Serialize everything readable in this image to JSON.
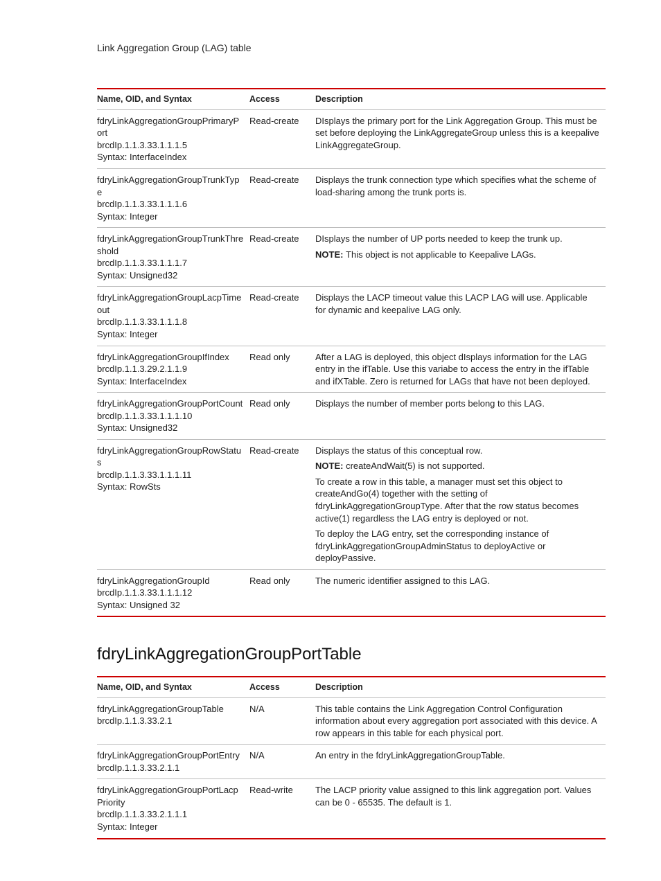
{
  "page_header": "Link Aggregation Group (LAG) table",
  "table1": {
    "headers": {
      "c1": "Name, OID, and Syntax",
      "c2": "Access",
      "c3": "Description"
    },
    "rows": [
      {
        "name": "fdryLinkAggregationGroupPrimaryPort",
        "oid": "brcdIp.1.1.3.33.1.1.1.5",
        "syntax": "Syntax: InterfaceIndex",
        "access": "Read-create",
        "desc_parts": [
          {
            "type": "text",
            "text": "DIsplays the primary port for the Link Aggregation Group. This must be set before deploying the LinkAggregateGroup unless this is a keepalive LinkAggregateGroup."
          }
        ]
      },
      {
        "name": "fdryLinkAggregationGroupTrunkType",
        "oid": "brcdIp.1.1.3.33.1.1.1.6",
        "syntax": "Syntax: Integer",
        "access": "Read-create",
        "desc_parts": [
          {
            "type": "text",
            "text": "Displays the trunk connection type which specifies what the scheme of load-sharing among the trunk ports is."
          }
        ]
      },
      {
        "name": "fdryLinkAggregationGroupTrunkThreshold",
        "oid": "brcdIp.1.1.3.33.1.1.1.7",
        "syntax": "Syntax: Unsigned32",
        "access": "Read-create",
        "desc_parts": [
          {
            "type": "text",
            "text": "DIsplays the number of UP ports needed to keep the trunk up."
          },
          {
            "type": "note",
            "label": "NOTE:",
            "text": "This object is not applicable to Keepalive LAGs."
          }
        ]
      },
      {
        "name": "fdryLinkAggregationGroupLacpTimeout",
        "oid": "brcdIp.1.1.3.33.1.1.1.8",
        "syntax": "Syntax: Integer",
        "access": "Read-create",
        "desc_parts": [
          {
            "type": "text",
            "text": "Displays the LACP timeout value this LACP LAG will use. Applicable for dynamic and keepalive LAG only."
          }
        ]
      },
      {
        "name": "fdryLinkAggregationGroupIfIndex",
        "oid": "brcdIp.1.1.3.29.2.1.1.9",
        "syntax": "Syntax: InterfaceIndex",
        "access": "Read only",
        "desc_parts": [
          {
            "type": "text",
            "text": "After a LAG is deployed, this object dIsplays information for the LAG entry in the ifTable. Use this variabe to access the entry in the ifTable and ifXTable. Zero is returned for LAGs that have not been deployed."
          }
        ]
      },
      {
        "name": "fdryLinkAggregationGroupPortCount",
        "oid": "brcdIp.1.1.3.33.1.1.1.10",
        "syntax": "Syntax: Unsigned32",
        "access": "Read only",
        "desc_parts": [
          {
            "type": "text",
            "text": "Displays the number of member ports belong to this LAG."
          }
        ]
      },
      {
        "name": "fdryLinkAggregationGroupRowStatus",
        "oid": "brcdIp.1.1.3.33.1.1.1.11",
        "syntax": "Syntax: RowSts",
        "access": "Read-create",
        "desc_parts": [
          {
            "type": "text",
            "text": "Displays the status of this conceptual row."
          },
          {
            "type": "note",
            "label": "NOTE:",
            "text": "createAndWait(5) is not supported."
          },
          {
            "type": "text",
            "text": "To create a row in this table, a manager must set this object to createAndGo(4) together with the setting of fdryLinkAggregationGroupType. After that the row status becomes active(1) regardless the LAG entry is deployed or not."
          },
          {
            "type": "text",
            "text": "To deploy the LAG entry, set the corresponding instance of fdryLinkAggregationGroupAdminStatus to deployActive or deployPassive."
          }
        ]
      },
      {
        "name": "fdryLinkAggregationGroupId",
        "oid": "brcdIp.1.1.3.33.1.1.1.12",
        "syntax": "Syntax: Unsigned 32",
        "access": "Read only",
        "desc_parts": [
          {
            "type": "text",
            "text": "The numeric identifier assigned to this LAG."
          }
        ]
      }
    ]
  },
  "section2_title": "fdryLinkAggregationGroupPortTable",
  "table2": {
    "headers": {
      "c1": "Name, OID, and Syntax",
      "c2": "Access",
      "c3": "Description"
    },
    "rows": [
      {
        "name": "fdryLinkAggregationGroupTable",
        "oid": "brcdIp.1.1.3.33.2.1",
        "syntax": "",
        "access": "N/A",
        "desc_parts": [
          {
            "type": "text",
            "text": "This table contains the Link Aggregation Control Configuration information about every aggregation port associated with this device. A row appears in this table for each physical port."
          }
        ]
      },
      {
        "name": "fdryLinkAggregationGroupPortEntry",
        "oid": "brcdIp.1.1.3.33.2.1.1",
        "syntax": "",
        "access": "N/A",
        "desc_parts": [
          {
            "type": "text",
            "text": "An entry in the fdryLinkAggregationGroupTable."
          }
        ]
      },
      {
        "name": "fdryLinkAggregationGroupPortLacpPriority",
        "oid": "brcdIp.1.1.3.33.2.1.1.1",
        "syntax": "Syntax: Integer",
        "access": "Read-write",
        "desc_parts": [
          {
            "type": "text",
            "text": "The LACP priority value assigned to this link aggregation port. Values can be 0 - 65535. The default is 1."
          }
        ]
      }
    ]
  }
}
